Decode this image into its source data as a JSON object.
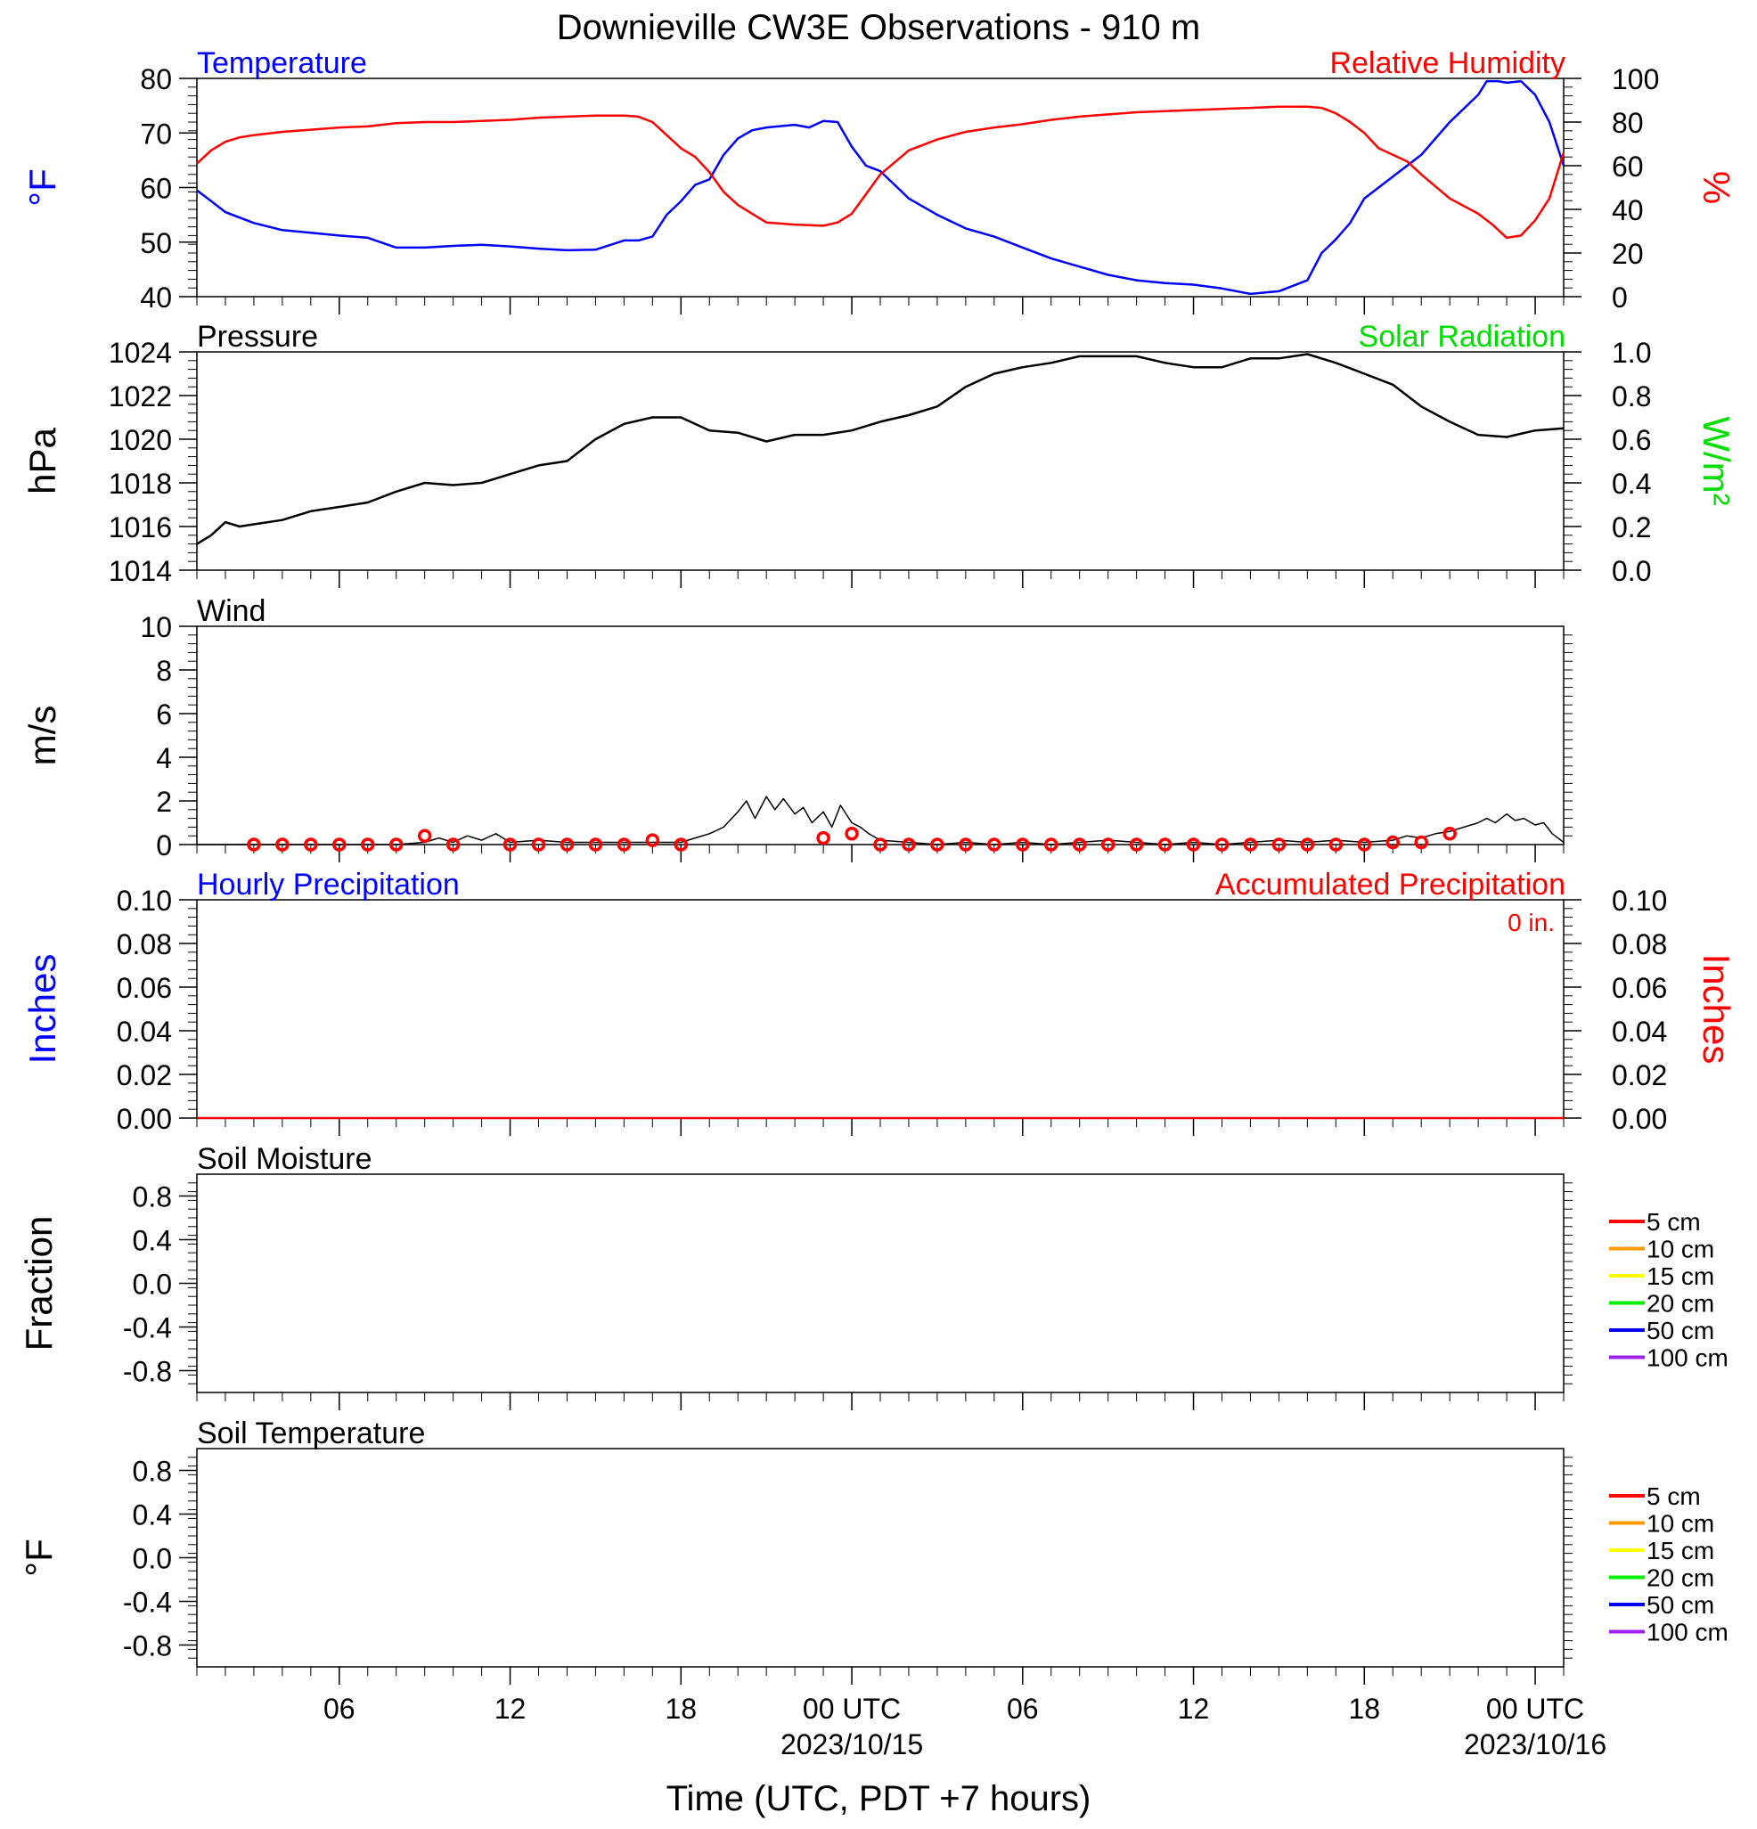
{
  "title": "Downieville CW3E Observations - 910 m",
  "x_axis": {
    "label": "Time (UTC, PDT +7 hours)",
    "ticks": [
      {
        "h": 6,
        "label": "06",
        "date": ""
      },
      {
        "h": 12,
        "label": "12",
        "date": ""
      },
      {
        "h": 18,
        "label": "18",
        "date": ""
      },
      {
        "h": 24,
        "label": "00 UTC",
        "date": "2023/10/15"
      },
      {
        "h": 30,
        "label": "06",
        "date": ""
      },
      {
        "h": 36,
        "label": "12",
        "date": ""
      },
      {
        "h": 42,
        "label": "18",
        "date": ""
      },
      {
        "h": 48,
        "label": "00 UTC",
        "date": "2023/10/16"
      }
    ],
    "range_hours": [
      1,
      49
    ]
  },
  "legend_soil": [
    {
      "label": "5 cm",
      "color": "#ff0000"
    },
    {
      "label": "10 cm",
      "color": "#ff9900"
    },
    {
      "label": "15 cm",
      "color": "#ffff00"
    },
    {
      "label": "20 cm",
      "color": "#00ee00"
    },
    {
      "label": "50 cm",
      "color": "#0000ee"
    },
    {
      "label": "100 cm",
      "color": "#a020f0"
    }
  ],
  "chart_data": [
    {
      "type": "line",
      "name_left": "Temperature",
      "name_right": "Relative Humidity",
      "ylabel_left": "°F",
      "ylabel_right": "%",
      "ylim_left": [
        40,
        80
      ],
      "ylim_right": [
        0,
        100
      ],
      "yticks_left": [
        "80",
        "70",
        "60",
        "50",
        "40"
      ],
      "yticks_right": [
        "100",
        "80",
        "60",
        "40",
        "20",
        "0"
      ],
      "series": [
        {
          "name": "Temperature",
          "color": "#0000ff",
          "axis": "left",
          "x": [
            1,
            1.5,
            2,
            3,
            4,
            5,
            6,
            7,
            8,
            9,
            10,
            11,
            12,
            13,
            14,
            15,
            16,
            16.5,
            17,
            17.5,
            18,
            18.5,
            19,
            19.5,
            20,
            20.5,
            21,
            22,
            22.5,
            23,
            23.5,
            24,
            24.5,
            25,
            25.5,
            26,
            27,
            28,
            29,
            30,
            31,
            32,
            33,
            34,
            35,
            36,
            37,
            38,
            39,
            40,
            40.5,
            41,
            41.5,
            42,
            43,
            44,
            45,
            46,
            46.3,
            46.7,
            47,
            47.5,
            48,
            48.5,
            49
          ],
          "y": [
            59.5,
            57.5,
            55.5,
            53.5,
            52.2,
            51.7,
            51.2,
            50.8,
            49,
            49,
            49.3,
            49.5,
            49.2,
            48.8,
            48.5,
            48.6,
            50.3,
            50.3,
            51,
            55,
            57.5,
            60.5,
            61.5,
            66,
            69,
            70.5,
            71,
            71.5,
            71,
            72.2,
            72,
            67.5,
            64,
            63,
            60.5,
            58,
            55,
            52.5,
            51,
            49,
            47,
            45.5,
            44,
            43,
            42.5,
            42.2,
            41.5,
            40.5,
            41,
            43,
            48,
            50.5,
            53.5,
            58,
            62,
            66,
            72,
            77,
            79.5,
            79.5,
            79.2,
            79.5,
            77,
            72,
            64
          ]
        },
        {
          "name": "Relative Humidity",
          "color": "#ff0000",
          "axis": "right",
          "x": [
            1,
            1.5,
            2,
            2.5,
            3,
            4,
            5,
            6,
            7,
            8,
            9,
            10,
            11,
            12,
            13,
            14,
            15,
            16,
            16.5,
            17,
            17.5,
            18,
            18.5,
            19,
            19.5,
            20,
            20.5,
            21,
            22,
            23,
            23.5,
            24,
            24.5,
            25,
            26,
            27,
            28,
            29,
            30,
            31,
            32,
            33,
            34,
            35,
            36,
            37,
            38,
            39,
            40,
            40.5,
            41,
            41.5,
            42,
            42.5,
            43,
            43.5,
            44,
            45,
            46,
            46.5,
            47,
            47.5,
            48,
            48.5,
            49
          ],
          "y": [
            61,
            67,
            71,
            73,
            74,
            75.5,
            76.5,
            77.5,
            78,
            79.5,
            80,
            80,
            80.5,
            81,
            82,
            82.5,
            83,
            83,
            82.5,
            80,
            74,
            68,
            64,
            57,
            48,
            42,
            38,
            34,
            33,
            32.5,
            34,
            38,
            47,
            56,
            67,
            72,
            75.5,
            77.5,
            79,
            81,
            82.5,
            83.5,
            84.5,
            85,
            85.5,
            86,
            86.5,
            87,
            87,
            86.5,
            84,
            80,
            75,
            68,
            65,
            62,
            56,
            45,
            38,
            33,
            27,
            28,
            35,
            45,
            66
          ]
        }
      ]
    },
    {
      "type": "line",
      "name_left": "Pressure",
      "name_right": "Solar Radiation",
      "ylabel_left": "hPa",
      "ylabel_right": "W/m²",
      "ylim_left": [
        1014,
        1024
      ],
      "ylim_right": [
        0,
        1
      ],
      "yticks_left": [
        "1024",
        "1022",
        "1020",
        "1018",
        "1016",
        "1014"
      ],
      "yticks_right": [
        "1.0",
        "0.8",
        "0.6",
        "0.4",
        "0.2",
        "0.0"
      ],
      "series": [
        {
          "name": "Pressure",
          "color": "#000000",
          "axis": "left",
          "x": [
            1,
            1.5,
            2,
            2.5,
            3,
            4,
            5,
            6,
            7,
            8,
            9,
            10,
            11,
            12,
            13,
            14,
            15,
            16,
            17,
            18,
            19,
            20,
            21,
            22,
            23,
            24,
            25,
            26,
            27,
            28,
            29,
            30,
            31,
            32,
            33,
            34,
            35,
            36,
            37,
            38,
            39,
            40,
            41,
            42,
            43,
            44,
            45,
            46,
            47,
            48,
            49
          ],
          "y": [
            1015.2,
            1015.6,
            1016.2,
            1016.0,
            1016.1,
            1016.3,
            1016.7,
            1016.9,
            1017.1,
            1017.6,
            1018.0,
            1017.9,
            1018.0,
            1018.4,
            1018.8,
            1019.0,
            1020.0,
            1020.7,
            1021.0,
            1021.0,
            1020.4,
            1020.3,
            1019.9,
            1020.2,
            1020.2,
            1020.4,
            1020.8,
            1021.1,
            1021.5,
            1022.4,
            1023.0,
            1023.3,
            1023.5,
            1023.8,
            1023.8,
            1023.8,
            1023.5,
            1023.3,
            1023.3,
            1023.7,
            1023.7,
            1023.9,
            1023.5,
            1023.0,
            1022.5,
            1021.5,
            1020.8,
            1020.2,
            1020.1,
            1020.4,
            1020.5
          ]
        }
      ]
    },
    {
      "type": "line",
      "name_left": "Wind",
      "ylabel_left": "m/s",
      "ylim_left": [
        0,
        10
      ],
      "yticks_left": [
        "10",
        "8",
        "6",
        "4",
        "2",
        "0"
      ],
      "series": [
        {
          "name": "Wind",
          "color": "#000000",
          "axis": "left",
          "x": [
            1,
            8,
            9,
            9.5,
            10,
            10.5,
            11,
            11.5,
            12,
            13,
            14,
            15,
            16,
            17,
            18,
            18.5,
            19,
            19.5,
            20,
            20.3,
            20.6,
            21,
            21.3,
            21.6,
            22,
            22.3,
            22.6,
            23,
            23.3,
            23.6,
            24,
            24.3,
            24.6,
            25,
            26,
            27,
            28,
            29,
            30,
            31,
            32,
            33,
            34,
            35,
            36,
            37,
            38,
            39,
            40,
            41,
            42,
            43,
            43.5,
            44,
            44.5,
            45,
            45.5,
            46,
            46.3,
            46.6,
            47,
            47.3,
            47.6,
            48,
            48.3,
            48.6,
            49
          ],
          "y": [
            0,
            0,
            0.1,
            0.3,
            0.1,
            0.4,
            0.2,
            0.5,
            0.1,
            0.2,
            0.1,
            0.1,
            0.1,
            0.1,
            0.1,
            0.3,
            0.5,
            0.8,
            1.5,
            2.0,
            1.2,
            2.2,
            1.6,
            2.1,
            1.4,
            1.7,
            1.0,
            1.5,
            0.8,
            1.8,
            1.0,
            0.8,
            0.5,
            0.2,
            0.1,
            0.0,
            0.1,
            0.0,
            0.1,
            0.0,
            0.1,
            0.2,
            0.1,
            0.0,
            0.1,
            0.0,
            0.1,
            0.2,
            0.1,
            0.2,
            0.1,
            0.2,
            0.4,
            0.3,
            0.5,
            0.6,
            0.8,
            1.0,
            1.2,
            1.0,
            1.4,
            1.1,
            1.2,
            0.9,
            1.0,
            0.5,
            0.1
          ]
        },
        {
          "name": "Hourly wind markers",
          "color": "#ff0000",
          "axis": "left",
          "marker": "circle",
          "x": [
            3,
            4,
            5,
            6,
            7,
            8,
            9,
            10,
            12,
            13,
            14,
            15,
            16,
            17,
            18,
            23,
            24,
            25,
            26,
            27,
            28,
            29,
            30,
            31,
            32,
            33,
            34,
            35,
            36,
            37,
            38,
            39,
            40,
            41,
            42,
            43,
            44,
            45
          ],
          "y": [
            0,
            0,
            0,
            0,
            0,
            0,
            0.4,
            0,
            0,
            0,
            0,
            0,
            0,
            0.2,
            0,
            0.3,
            0.5,
            0,
            0,
            0,
            0,
            0,
            0,
            0,
            0,
            0,
            0,
            0,
            0,
            0,
            0,
            0,
            0,
            0,
            0,
            0.1,
            0.1,
            0.5
          ]
        }
      ]
    },
    {
      "type": "line",
      "name_left": "Hourly Precipitation",
      "name_right": "Accumulated Precipitation",
      "annotation": "0 in.",
      "ylabel_left": "Inches",
      "ylabel_right": "Inches",
      "ylim_left": [
        0,
        0.1
      ],
      "ylim_right": [
        0,
        0.1
      ],
      "yticks_left": [
        "0.10",
        "0.08",
        "0.06",
        "0.04",
        "0.02",
        "0.00"
      ],
      "yticks_right": [
        "0.10",
        "0.08",
        "0.06",
        "0.04",
        "0.02",
        "0.00"
      ],
      "series": [
        {
          "name": "Accumulated Precipitation",
          "color": "#ff0000",
          "axis": "right",
          "x": [
            1,
            49
          ],
          "y": [
            0,
            0
          ]
        }
      ]
    },
    {
      "type": "line",
      "name_left": "Soil Moisture",
      "ylabel_left": "Fraction",
      "ylim_left": [
        -1,
        1
      ],
      "yticks_left": [
        "0.8",
        "0.4",
        "0.0",
        "-0.4",
        "-0.8"
      ],
      "series": []
    },
    {
      "type": "line",
      "name_left": "Soil Temperature",
      "ylabel_left": "°F",
      "ylim_left": [
        -1,
        1
      ],
      "yticks_left": [
        "0.8",
        "0.4",
        "0.0",
        "-0.4",
        "-0.8"
      ],
      "series": []
    }
  ]
}
